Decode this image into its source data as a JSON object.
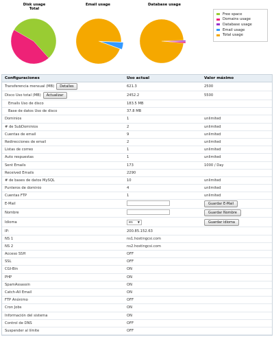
{
  "charts": {
    "disk": {
      "title": "Disk usage",
      "subtitle": "Total"
    },
    "email": {
      "title": "Email usage"
    },
    "database": {
      "title": "Database usage"
    }
  },
  "chart_data": [
    {
      "type": "pie",
      "title": "Disk usage",
      "subtitle": "Total",
      "slices": [
        {
          "label": "Free space",
          "value": 55,
          "color": "#99cc33"
        },
        {
          "label": "Domains usage",
          "value": 45,
          "color": "#ee2277"
        }
      ]
    },
    {
      "type": "pie",
      "title": "Email usage",
      "slices": [
        {
          "label": "Total usage",
          "value": 95,
          "color": "#f5a800"
        },
        {
          "label": "Email usage",
          "value": 5,
          "color": "#3399ff"
        }
      ]
    },
    {
      "type": "pie",
      "title": "Database usage",
      "slices": [
        {
          "label": "Total usage",
          "value": 98,
          "color": "#f5a800"
        },
        {
          "label": "Database usage",
          "value": 1,
          "color": "#9933cc"
        },
        {
          "label": "Domains usage",
          "value": 1,
          "color": "#ee2277"
        }
      ]
    }
  ],
  "legend": [
    {
      "label": "Free space",
      "color": "#99cc33"
    },
    {
      "label": "Domains usage",
      "color": "#ee2277"
    },
    {
      "label": "Database usage",
      "color": "#9933cc"
    },
    {
      "label": "Email usage",
      "color": "#3399ff"
    },
    {
      "label": "Total usage",
      "color": "#f5a800"
    }
  ],
  "table": {
    "headers": {
      "config": "Configuraciones",
      "current": "Uso actual",
      "max": "Valor máximo"
    },
    "rows": [
      {
        "label": "Transferencia mensual (MB)",
        "button": "Detalles",
        "current": "621.3",
        "max": "2500"
      },
      {
        "label": "Disco Uso total (MB)",
        "button": "Actualizar",
        "current": "2452.2",
        "max": "5500"
      },
      {
        "label": "Emails Uso de disco",
        "current": "183.5 MB",
        "max": "",
        "sub": true
      },
      {
        "label": "Base de datos Uso de disco",
        "current": "37.8 MB",
        "max": "",
        "sub": true
      },
      {
        "label": "Dominios",
        "current": "1",
        "max": "unlimited"
      },
      {
        "label": "# de SubDominios",
        "current": "2",
        "max": "unlimited"
      },
      {
        "label": "Cuentas de email",
        "current": "9",
        "max": "unlimited"
      },
      {
        "label": "Redirecciones de email",
        "current": "2",
        "max": "unlimited"
      },
      {
        "label": "Listas de correo",
        "current": "1",
        "max": "unlimited"
      },
      {
        "label": "Auto respuestas",
        "current": "1",
        "max": "unlimited"
      },
      {
        "label": "Sent Emails",
        "current": "173",
        "max": "1000 / Day"
      },
      {
        "label": "Received Emails",
        "current": "2290",
        "max": ""
      },
      {
        "label": "# de bases de datos MySQL",
        "current": "10",
        "max": "unlimited"
      },
      {
        "label": "Punteros de dominio",
        "current": "4",
        "max": "unlimited"
      },
      {
        "label": "Cuentas FTP",
        "current": "1",
        "max": "unlimited"
      },
      {
        "label": "E-Mail",
        "input": true,
        "action": "Guardar E-Mail"
      },
      {
        "label": "Nombre",
        "input": true,
        "action": "Guardar Nombre"
      },
      {
        "label": "Idioma",
        "select": "es",
        "action": "Guardar idioma"
      },
      {
        "label": "IP:",
        "current": "200.85.152.63",
        "max": ""
      },
      {
        "label": "NS 1",
        "current": "ns1.hostingcsi.com",
        "max": ""
      },
      {
        "label": "NS 2",
        "current": "ns2.hostingcsi.com",
        "max": ""
      },
      {
        "label": "Acceso SSH",
        "current": "OFF",
        "max": ""
      },
      {
        "label": "SSL",
        "current": "OFF",
        "max": ""
      },
      {
        "label": "CGI-Bin",
        "current": "ON",
        "max": ""
      },
      {
        "label": "PHP",
        "current": "ON",
        "max": ""
      },
      {
        "label": "SpamAssassin",
        "current": "ON",
        "max": ""
      },
      {
        "label": "Catch-All Email",
        "current": "ON",
        "max": ""
      },
      {
        "label": "FTP Anónimo",
        "current": "OFF",
        "max": ""
      },
      {
        "label": "Cron Jobs",
        "current": "ON",
        "max": ""
      },
      {
        "label": "Información del sistema",
        "current": "ON",
        "max": ""
      },
      {
        "label": "Control de DNS",
        "current": "OFF",
        "max": ""
      },
      {
        "label": "Suspender al límite",
        "current": "OFF",
        "max": ""
      }
    ]
  }
}
